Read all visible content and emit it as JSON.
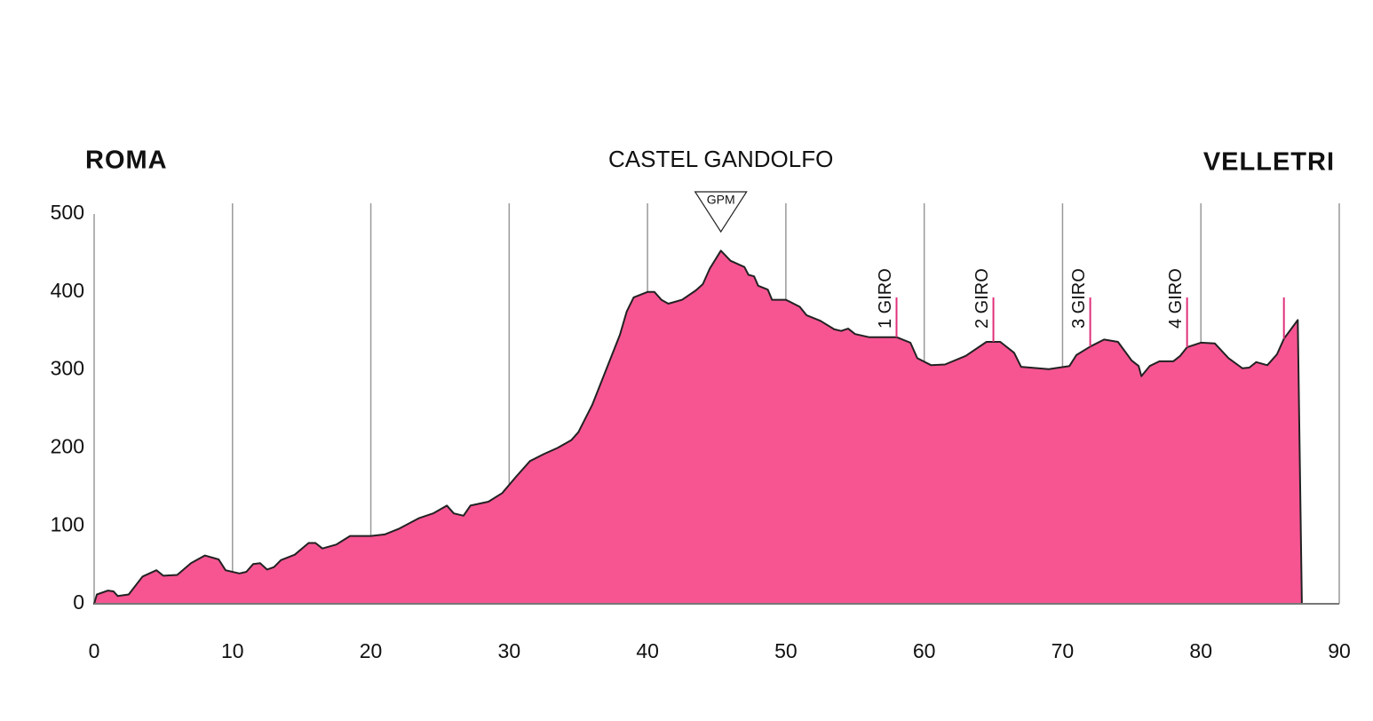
{
  "chart_data": {
    "type": "area",
    "start_label": "ROMA",
    "middle_label": "CASTEL GANDOLFO",
    "end_label": "VELLETRI",
    "color": "#f65592",
    "x": [
      0,
      0.2,
      1,
      1.4,
      1.7,
      2.5,
      3.5,
      4.5,
      5,
      6,
      7,
      8,
      9,
      9.5,
      10.5,
      11,
      11.5,
      12,
      12.5,
      13,
      13.5,
      14.5,
      15.5,
      16,
      16.5,
      17.5,
      18.5,
      20,
      21,
      22,
      23.5,
      24.5,
      25.5,
      26,
      26.7,
      27.2,
      28.5,
      29.5,
      30.5,
      31.5,
      32.5,
      33.5,
      34.5,
      35,
      36,
      37,
      38,
      38.5,
      39,
      40,
      40.5,
      41,
      41.5,
      42.5,
      43.5,
      44,
      44.5,
      45.3,
      46,
      46.5,
      47,
      47.3,
      47.7,
      48,
      48.7,
      49,
      50,
      51,
      51.5,
      52.5,
      53.5,
      54,
      54.5,
      55,
      56,
      58,
      59,
      59.5,
      60.5,
      61.5,
      63,
      64.5,
      65.5,
      66.5,
      67,
      69,
      70.5,
      71,
      72,
      73,
      74,
      75,
      75.5,
      75.7,
      76.3,
      77,
      78,
      78.5,
      79,
      80,
      81,
      82,
      83,
      83.5,
      84,
      84.8,
      85.5,
      86,
      87,
      87.3
    ],
    "y": [
      0,
      12,
      17,
      16,
      10,
      12,
      35,
      43,
      36,
      37,
      52,
      62,
      57,
      43,
      39,
      41,
      51,
      52,
      44,
      47,
      56,
      63,
      78,
      78,
      71,
      76,
      87,
      87,
      89,
      96,
      110,
      116,
      126,
      116,
      113,
      126,
      131,
      142,
      163,
      183,
      192,
      200,
      210,
      220,
      255,
      300,
      345,
      375,
      393,
      400,
      400,
      390,
      385,
      390,
      402,
      410,
      430,
      453,
      440,
      436,
      432,
      422,
      420,
      408,
      403,
      390,
      390,
      381,
      370,
      363,
      352,
      350,
      353,
      346,
      342,
      342,
      335,
      315,
      306,
      307,
      318,
      336,
      336,
      322,
      304,
      301,
      305,
      319,
      330,
      339,
      336,
      312,
      305,
      292,
      305,
      311,
      311,
      318,
      329,
      335,
      334,
      315,
      302,
      303,
      310,
      306,
      320,
      340,
      364,
      0
    ],
    "gpm": {
      "label": "GPM",
      "x": 45.3
    },
    "markers": [
      {
        "x": 58,
        "label": "1 GIRO"
      },
      {
        "x": 65,
        "label": "2 GIRO"
      },
      {
        "x": 72,
        "label": "3 GIRO"
      },
      {
        "x": 79,
        "label": "4 GIRO"
      },
      {
        "x": 86
      }
    ],
    "xlim": [
      0,
      90
    ],
    "xticks": [
      0,
      10,
      20,
      30,
      40,
      50,
      60,
      70,
      80,
      90
    ],
    "ylim": [
      0,
      500
    ],
    "yticks": [
      0,
      100,
      200,
      300,
      400,
      500
    ],
    "grid": true
  }
}
